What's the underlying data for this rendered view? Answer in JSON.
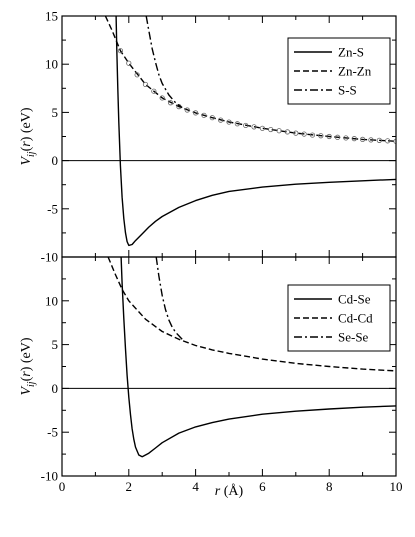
{
  "chart_data": [
    {
      "type": "line",
      "panel": "top",
      "xlim": [
        0,
        10
      ],
      "ylim": [
        -10,
        15
      ],
      "xticks": [
        "0",
        "2",
        "4",
        "6",
        "8",
        "10"
      ],
      "yticks": [
        "-10",
        "-5",
        "0",
        "5",
        "10",
        "15"
      ],
      "ylabel_main": "V",
      "ylabel_sub": "ij",
      "ylabel_rest": "(r) (eV)",
      "legend_position": "top-right",
      "series": [
        {
          "name": "Zn-S",
          "style": "solid",
          "x": [
            1.62,
            1.64,
            1.67,
            1.7,
            1.75,
            1.8,
            1.85,
            1.9,
            1.95,
            2.0,
            2.1,
            2.2,
            2.4,
            2.6,
            2.8,
            3.0,
            3.5,
            4.0,
            4.5,
            5.0,
            6.0,
            7.0,
            8.0,
            9.0,
            10.0
          ],
          "y": [
            15.0,
            11.5,
            7.5,
            4.0,
            -0.5,
            -3.8,
            -6.0,
            -7.5,
            -8.4,
            -8.8,
            -8.7,
            -8.3,
            -7.6,
            -6.9,
            -6.3,
            -5.8,
            -4.85,
            -4.15,
            -3.6,
            -3.2,
            -2.75,
            -2.45,
            -2.25,
            -2.1,
            -1.95
          ]
        },
        {
          "name": "Zn-Zn",
          "style": "dashed",
          "x": [
            1.3,
            1.5,
            1.75,
            2.0,
            2.5,
            3.0,
            3.5,
            4.0,
            4.5,
            5.0,
            6.0,
            7.0,
            8.0,
            9.0,
            10.0
          ],
          "y": [
            15.0,
            13.5,
            11.4,
            10.1,
            7.9,
            6.5,
            5.6,
            4.95,
            4.45,
            4.0,
            3.35,
            2.85,
            2.5,
            2.2,
            2.0
          ],
          "markers_x": [
            1.75,
            2.0,
            2.25,
            2.5,
            2.75,
            3.0,
            3.25,
            3.5,
            3.75,
            4.0,
            4.25,
            4.5,
            4.75,
            5.0,
            5.25,
            5.5,
            5.75,
            6.0,
            6.25,
            6.5,
            6.75,
            7.0,
            7.25,
            7.5,
            7.75,
            8.0,
            8.25,
            8.5,
            8.75,
            9.0,
            9.25,
            9.5,
            9.75,
            10.0
          ],
          "markers_y": [
            11.4,
            10.1,
            8.9,
            7.9,
            7.2,
            6.5,
            6.0,
            5.6,
            5.25,
            4.95,
            4.7,
            4.45,
            4.2,
            4.0,
            3.82,
            3.65,
            3.5,
            3.35,
            3.22,
            3.1,
            2.98,
            2.85,
            2.75,
            2.65,
            2.58,
            2.5,
            2.42,
            2.35,
            2.28,
            2.2,
            2.15,
            2.1,
            2.05,
            2.0
          ]
        },
        {
          "name": "S-S",
          "style": "dashdot",
          "x": [
            2.52,
            2.6,
            2.7,
            2.8,
            2.9,
            3.0,
            3.2,
            3.4,
            3.6
          ],
          "y": [
            15.0,
            13.5,
            11.6,
            10.2,
            8.9,
            8.0,
            6.8,
            6.0,
            5.5
          ]
        }
      ]
    },
    {
      "type": "line",
      "panel": "bottom",
      "xlim": [
        0,
        10
      ],
      "ylim": [
        -10,
        15
      ],
      "xticks": [
        "0",
        "2",
        "4",
        "6",
        "8",
        "10"
      ],
      "yticks": [
        "-10",
        "-5",
        "0",
        "5",
        "10"
      ],
      "xlabel_main": "r",
      "xlabel_rest": " (Å)",
      "ylabel_main": "V",
      "ylabel_sub": "ij",
      "ylabel_rest": "(r) (eV)",
      "legend_position": "top-right",
      "series": [
        {
          "name": "Cd-Se",
          "style": "solid",
          "x": [
            1.77,
            1.8,
            1.85,
            1.9,
            1.95,
            2.0,
            2.05,
            2.1,
            2.15,
            2.2,
            2.3,
            2.4,
            2.6,
            2.8,
            3.0,
            3.5,
            4.0,
            4.5,
            5.0,
            6.0,
            7.0,
            8.0,
            9.0,
            10.0
          ],
          "y": [
            15.0,
            12.0,
            8.0,
            4.5,
            1.5,
            -1.0,
            -3.0,
            -4.6,
            -5.8,
            -6.7,
            -7.6,
            -7.8,
            -7.4,
            -6.8,
            -6.2,
            -5.1,
            -4.4,
            -3.9,
            -3.5,
            -2.95,
            -2.6,
            -2.35,
            -2.15,
            -2.0
          ]
        },
        {
          "name": "Cd-Cd",
          "style": "dashed",
          "x": [
            1.38,
            1.6,
            1.8,
            2.0,
            2.5,
            3.0,
            3.5,
            4.0,
            4.5,
            5.0,
            6.0,
            7.0,
            8.0,
            9.0,
            10.0
          ],
          "y": [
            15.0,
            13.0,
            11.3,
            10.0,
            7.9,
            6.5,
            5.6,
            4.9,
            4.4,
            4.0,
            3.35,
            2.85,
            2.5,
            2.2,
            2.0
          ]
        },
        {
          "name": "Se-Se",
          "style": "dashdot",
          "x": [
            2.82,
            2.9,
            3.0,
            3.1,
            3.2,
            3.3,
            3.4,
            3.6
          ],
          "y": [
            15.0,
            12.8,
            10.6,
            9.0,
            7.8,
            7.0,
            6.4,
            5.6
          ]
        }
      ]
    }
  ]
}
